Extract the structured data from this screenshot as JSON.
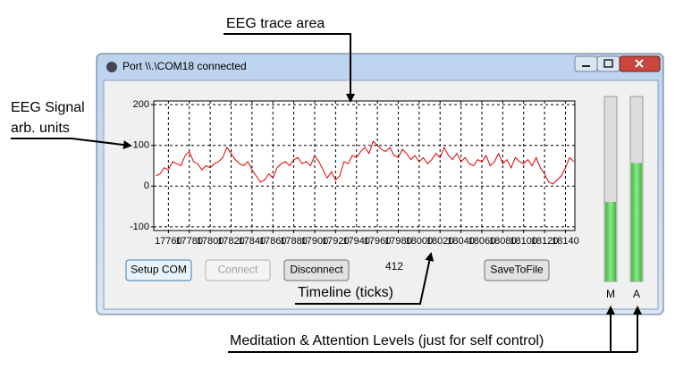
{
  "window": {
    "title": "Port \\\\.\\COM18 connected"
  },
  "chart_data": {
    "type": "line",
    "x": [
      17748,
      17752,
      17756,
      17760,
      17764,
      17768,
      17772,
      17776,
      17780,
      17784,
      17788,
      17792,
      17796,
      17800,
      17804,
      17808,
      17812,
      17816,
      17820,
      17824,
      17828,
      17832,
      17836,
      17840,
      17844,
      17848,
      17852,
      17856,
      17860,
      17864,
      17868,
      17872,
      17876,
      17880,
      17884,
      17888,
      17892,
      17896,
      17900,
      17904,
      17908,
      17912,
      17916,
      17920,
      17924,
      17928,
      17932,
      17936,
      17940,
      17944,
      17948,
      17952,
      17956,
      17960,
      17964,
      17968,
      17972,
      17976,
      17980,
      17984,
      17988,
      17992,
      17996,
      18000,
      18004,
      18008,
      18012,
      18016,
      18020,
      18024,
      18028,
      18032,
      18036,
      18040,
      18044,
      18048,
      18052,
      18056,
      18060,
      18064,
      18068,
      18072,
      18076,
      18080,
      18084,
      18088,
      18092,
      18096,
      18100,
      18104,
      18108,
      18112,
      18116,
      18120,
      18124,
      18128,
      18132,
      18136,
      18140,
      18144,
      18148
    ],
    "values": [
      25,
      30,
      45,
      40,
      60,
      55,
      50,
      75,
      85,
      60,
      55,
      40,
      50,
      45,
      55,
      60,
      70,
      95,
      80,
      65,
      55,
      50,
      60,
      40,
      25,
      10,
      15,
      30,
      20,
      45,
      55,
      60,
      50,
      65,
      70,
      55,
      60,
      50,
      75,
      60,
      40,
      20,
      35,
      15,
      25,
      60,
      55,
      75,
      70,
      85,
      95,
      80,
      110,
      100,
      90,
      85,
      95,
      75,
      70,
      90,
      80,
      65,
      75,
      60,
      70,
      55,
      65,
      80,
      70,
      95,
      75,
      65,
      80,
      60,
      70,
      55,
      50,
      65,
      60,
      75,
      50,
      60,
      80,
      55,
      65,
      45,
      70,
      60,
      55,
      65,
      50,
      70,
      45,
      30,
      10,
      5,
      15,
      25,
      45,
      70,
      60
    ],
    "color": "#e00000",
    "xlim": [
      17746,
      18149
    ],
    "ylim": [
      -109,
      209
    ],
    "xticks": [
      17760,
      17780,
      17800,
      17820,
      17840,
      17860,
      17880,
      17900,
      17920,
      17940,
      17960,
      17980,
      18000,
      18020,
      18040,
      18060,
      18080,
      18100,
      18120,
      18140
    ],
    "yticks": [
      -100,
      0,
      100,
      200
    ],
    "grid": true
  },
  "buttons": [
    "Setup COM",
    "Connect",
    "Disconnect",
    "SaveToFile"
  ],
  "counter": 412,
  "levels": {
    "ylim": [
      0,
      100
    ],
    "bars": [
      {
        "label": "M",
        "value": 43
      },
      {
        "label": "A",
        "value": 64
      }
    ]
  },
  "annotations": {
    "trace_area": "EEG trace area",
    "signal": [
      "EEG Signal",
      "arb. units"
    ],
    "timeline": "Timeline (ticks)",
    "levels": "Meditation & Attention Levels (just for self control)"
  }
}
